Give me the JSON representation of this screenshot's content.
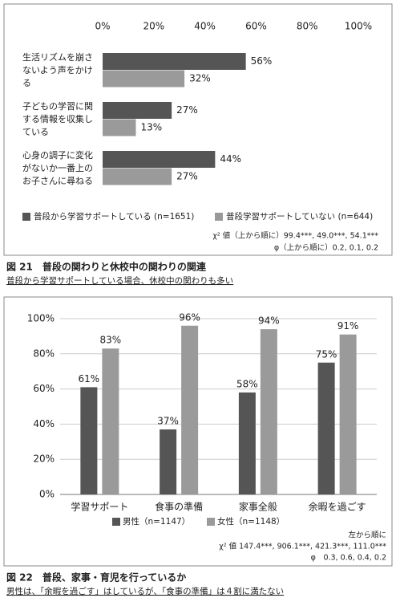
{
  "chart_data": [
    {
      "type": "bar",
      "orientation": "horizontal",
      "title": "図 21　普段の関わりと休校中の関わりの関連",
      "subtitle": "普段から学習サポートしている場合、休校中の関わりも多い",
      "categories": [
        "生活リズムを崩さないよう声をかける",
        "子どもの学習に関する情報を収集している",
        "心身の調子に変化がないか一番上のお子さんに尋ねる"
      ],
      "series": [
        {
          "name": "普段から学習サポートしている (n=1651)",
          "color": "#555555",
          "values": [
            56,
            27,
            44
          ],
          "value_labels": [
            "56%",
            "27%",
            "44%"
          ]
        },
        {
          "name": "普段学習サポートしていない (n=644)",
          "color": "#9a9a9a",
          "values": [
            32,
            13,
            27
          ],
          "value_labels": [
            "32%",
            "13%",
            "27%"
          ]
        }
      ],
      "xlim": [
        0,
        100
      ],
      "xticks": [
        {
          "value": 0,
          "label": "0%"
        },
        {
          "value": 20,
          "label": "20%"
        },
        {
          "value": 40,
          "label": "40%"
        },
        {
          "value": 60,
          "label": "60%"
        },
        {
          "value": 80,
          "label": "80%"
        },
        {
          "value": 100,
          "label": "100%"
        }
      ],
      "grid": false,
      "notes": [
        "χ² 値（上から順に）99.4***, 49.0***, 54.1***",
        "φ（上から順に）0.2, 0.1, 0.2"
      ]
    },
    {
      "type": "bar",
      "orientation": "vertical",
      "title": "図 22　普段、家事・育児を行っているか",
      "subtitle": "男性は、「余暇を過ごす」はしているが、「食事の準備」は４割に満たない",
      "categories": [
        "学習サポート",
        "食事の準備",
        "家事全般",
        "余暇を過ごす"
      ],
      "series": [
        {
          "name": "男性（n=1147）",
          "color": "#555555",
          "values": [
            61,
            37,
            58,
            75
          ],
          "value_labels": [
            "61%",
            "37%",
            "58%",
            "75%"
          ]
        },
        {
          "name": "女性（n=1148）",
          "color": "#9a9a9a",
          "values": [
            83,
            96,
            94,
            91
          ],
          "value_labels": [
            "83%",
            "96%",
            "94%",
            "91%"
          ]
        }
      ],
      "ylim": [
        0,
        100
      ],
      "yticks": [
        {
          "value": 0,
          "label": "0%"
        },
        {
          "value": 20,
          "label": "20%"
        },
        {
          "value": 40,
          "label": "40%"
        },
        {
          "value": 60,
          "label": "60%"
        },
        {
          "value": 80,
          "label": "80%"
        },
        {
          "value": 100,
          "label": "100%"
        }
      ],
      "grid": true,
      "notes": [
        "左から順に",
        "χ² 値 147.4***, 906.1***, 421.3***, 111.0***",
        "φ　0.3, 0.6, 0.4, 0.2"
      ]
    }
  ]
}
